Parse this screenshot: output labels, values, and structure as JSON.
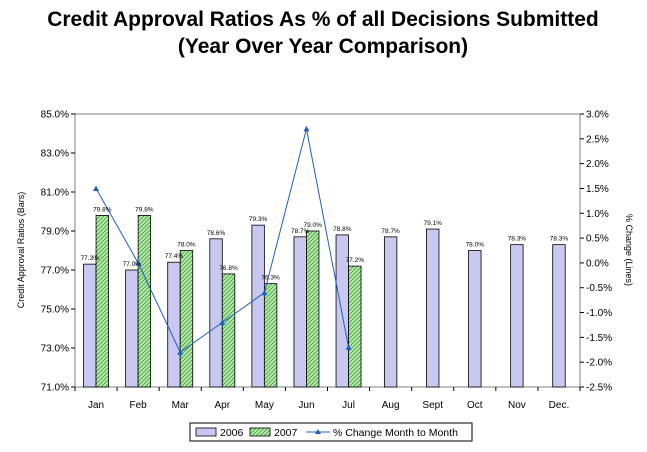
{
  "chart_data": {
    "type": "bar",
    "title": "Credit Approval Ratios As % of all Decisions Submitted",
    "subtitle": "(Year Over Year Comparison)",
    "categories": [
      "Jan",
      "Feb",
      "Mar",
      "Apr",
      "May",
      "Jun",
      "Jul",
      "Aug",
      "Sept",
      "Oct",
      "Nov",
      "Dec."
    ],
    "ylabel": "Credit Approval Ratios (Bars)",
    "y2label": "% Change (Lines)",
    "ylim": [
      71.0,
      85.0
    ],
    "y2lim": [
      -2.5,
      3.0
    ],
    "yticks": [
      "71.0%",
      "73.0%",
      "75.0%",
      "77.0%",
      "79.0%",
      "81.0%",
      "83.0%",
      "85.0%"
    ],
    "y2ticks": [
      "-2.5%",
      "-2.0%",
      "-1.5%",
      "-1.0%",
      "-0.5%",
      "0.0%",
      "0.5%",
      "1.0%",
      "1.5%",
      "2.0%",
      "2.5%",
      "3.0%"
    ],
    "series": [
      {
        "name": "2006",
        "type": "bar",
        "color": "#c8c8f0",
        "values": [
          77.3,
          77.0,
          77.4,
          78.6,
          79.3,
          78.7,
          78.8,
          78.7,
          79.1,
          78.0,
          78.3,
          78.3
        ],
        "labels": [
          "77.3%",
          "77.0%",
          "77.4%",
          "78.6%",
          "79.3%",
          "78.7%",
          "78.8%",
          "78.7%",
          "79.1%",
          "78.0%",
          "78.3%",
          "78.3%"
        ]
      },
      {
        "name": "2007",
        "type": "bar",
        "color": "#99dd88",
        "values": [
          79.8,
          79.8,
          78.0,
          76.8,
          76.3,
          79.0,
          77.2,
          null,
          null,
          null,
          null,
          null
        ],
        "labels": [
          "79.8%",
          "79.8%",
          "78.0%",
          "76.8%",
          "76.3%",
          "79.0%",
          "77.2%",
          null,
          null,
          null,
          null,
          null
        ]
      },
      {
        "name": "% Change Month to Month",
        "type": "line",
        "axis": "y2",
        "color": "#1f5fbf",
        "values": [
          1.5,
          0.0,
          -1.8,
          -1.2,
          -0.6,
          2.7,
          -1.7,
          null,
          null,
          null,
          null,
          null
        ]
      }
    ],
    "legend": "bottom"
  }
}
